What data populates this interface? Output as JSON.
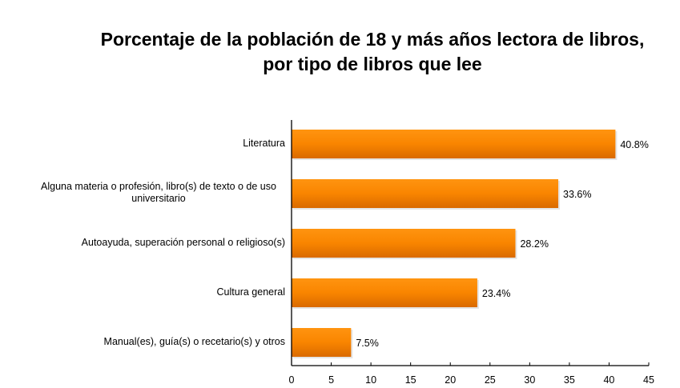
{
  "chart_data": {
    "type": "bar",
    "orientation": "horizontal",
    "title_lines": [
      "Porcentaje de la población de 18 y más años lectora de libros,",
      "por tipo de libros que lee"
    ],
    "categories": [
      "Literatura",
      "Alguna materia o profesión, libro(s) de texto o de uso universitario",
      "Autoayuda, superación personal o religioso(s)",
      "Cultura general",
      "Manual(es), guía(s) o recetario(s) y otros"
    ],
    "values": [
      40.8,
      33.6,
      28.2,
      23.4,
      7.5
    ],
    "data_labels": [
      "40.8%",
      "33.6%",
      "28.2%",
      "23.4%",
      "7.5%"
    ],
    "xlim": [
      0,
      45
    ],
    "xticks": [
      "0",
      "5",
      "10",
      "15",
      "20",
      "25",
      "30",
      "35",
      "40",
      "45"
    ],
    "grid": false,
    "legend": "none",
    "bar_color": "#FF8C00",
    "bar_color_dark": "#D96A00"
  }
}
